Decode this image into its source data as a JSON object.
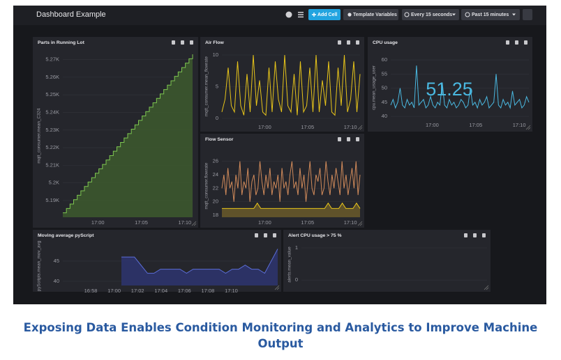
{
  "header": {
    "title": "Dashboard Example",
    "add_cell": "Add Cell",
    "template_variables": "Template Variables",
    "refresh": "Every 15 seconds",
    "range": "Past 15 minutes"
  },
  "cells": [
    {
      "title": "Parts in Running Lot",
      "ylabel": "mqtt_consumer.mean_C324",
      "ylim": [
        5180.5,
        5273
      ],
      "yticks": [
        {
          "value": 5190,
          "label": "5.19K"
        },
        {
          "value": 5200,
          "label": "5.2K"
        },
        {
          "value": 5210,
          "label": "5.21K"
        },
        {
          "value": 5220,
          "label": "5.22K"
        },
        {
          "value": 5230,
          "label": "5.23K"
        },
        {
          "value": 5240,
          "label": "5.24K"
        },
        {
          "value": 5250,
          "label": "5.25K"
        },
        {
          "value": 5260,
          "label": "5.26K"
        },
        {
          "value": 5270,
          "label": "5.27K"
        }
      ],
      "xticks": [
        "17:00",
        "17:05",
        "17:10"
      ],
      "series": [
        {
          "color": "#7ec850",
          "fill": "#3d5a2e",
          "step": true,
          "values": [
            5183,
            5185.5,
            5188,
            5190.5,
            5193,
            5195.5,
            5198,
            5200.5,
            5203,
            5205.5,
            5208,
            5210.5,
            5213,
            5215.5,
            5218,
            5220.5,
            5223,
            5225.5,
            5228,
            5230.5,
            5233,
            5235.5,
            5238,
            5240.5,
            5243,
            5245.5,
            5248,
            5250.5,
            5253,
            5255.5,
            5258,
            5260.5,
            5263,
            5265.5,
            5268,
            5270.5,
            5273
          ]
        }
      ]
    },
    {
      "title": "Air Flow",
      "ylabel": "mqtt_consumer.mean_flowrate",
      "ylim": [
        -0.55,
        10.66
      ],
      "yticks": [
        0,
        5,
        10
      ],
      "xticks": [
        "17:00",
        "17:05",
        "17:10"
      ],
      "series": [
        {
          "color": "#e8c51a",
          "values": [
            1,
            3,
            8,
            2,
            1,
            9,
            2,
            0.5,
            7,
            1,
            10,
            2,
            6,
            1,
            0.5,
            8,
            1,
            9,
            3,
            1,
            10,
            2,
            1,
            7,
            0.5,
            9,
            1,
            2,
            8,
            1,
            10,
            1,
            6,
            2,
            9,
            1,
            0.5,
            8,
            2,
            10,
            1,
            3,
            9,
            1,
            7
          ]
        }
      ]
    },
    {
      "title": "CPU usage",
      "ylabel": "cpu.mean_usage_user",
      "ylim": [
        38.8,
        61.5
      ],
      "yticks": [
        40,
        45,
        50,
        55,
        60
      ],
      "xticks": [
        "17:00",
        "17:05",
        "17:10"
      ],
      "stat": 51.25,
      "series": [
        {
          "color": "#4ab8e0",
          "values": [
            44,
            46,
            43,
            45,
            50,
            44,
            43,
            46,
            44,
            45,
            43,
            58,
            44,
            45,
            46,
            43,
            44,
            47,
            44,
            43,
            45,
            44,
            52,
            44,
            43,
            46,
            44,
            45,
            43,
            44,
            46,
            45,
            43,
            44,
            50,
            44,
            45,
            43,
            46,
            44,
            45,
            47,
            43,
            44,
            45,
            55,
            44,
            43,
            46,
            44,
            45,
            43,
            49,
            44,
            45,
            46,
            43,
            44,
            47,
            45
          ]
        }
      ]
    },
    {
      "title": "Flow Sensor",
      "ylabel": "mqtt_consumer.flowrate",
      "ylim": [
        17.7,
        27
      ],
      "yticks": [
        18,
        20,
        22,
        24,
        26
      ],
      "xticks": [
        "17:00",
        "17:05",
        "17:10"
      ],
      "series": [
        {
          "color": "#d08a5a",
          "values": [
            22,
            24,
            21,
            25,
            22,
            23,
            20,
            24,
            22,
            26,
            21,
            23,
            22,
            25,
            20,
            23,
            24,
            21,
            22,
            26,
            23,
            21,
            24,
            22,
            25,
            21,
            23,
            22,
            24,
            20,
            25,
            22,
            23,
            21,
            24,
            26,
            22,
            23,
            21,
            25,
            22,
            24,
            20,
            23,
            26,
            22,
            21,
            24,
            23,
            25,
            21,
            22,
            26,
            23,
            21,
            24,
            22,
            25,
            23,
            21,
            26,
            22,
            24,
            21,
            23,
            25,
            22,
            26,
            21,
            24
          ]
        },
        {
          "color": "#e8c51a",
          "fill": "#6a5a2a",
          "values": [
            19,
            19,
            19,
            19,
            19,
            19,
            19,
            19,
            19,
            19,
            19.8,
            19,
            19,
            19,
            19,
            19,
            19,
            19,
            19,
            19,
            19,
            19,
            19,
            19,
            19,
            19,
            19,
            19,
            19,
            19,
            19.8,
            19,
            19,
            19,
            19.8,
            19,
            19,
            19,
            19.8,
            19
          ]
        }
      ]
    },
    {
      "title": "Moving average pyScript",
      "ylabel": "pyScripts.mean_mov_avg",
      "ylim": [
        38.97,
        48.6
      ],
      "yticks": [
        40,
        45
      ],
      "xticks": [
        "16:58",
        "17:00",
        "17:02",
        "17:04",
        "17:06",
        "17:08",
        "17:10"
      ],
      "series": [
        {
          "color": "#5b6ed8",
          "fill": "#2e3570",
          "values": [
            null,
            null,
            null,
            null,
            null,
            null,
            null,
            null,
            null,
            46,
            46,
            46,
            44,
            42,
            42,
            43,
            43,
            43,
            43,
            42,
            43,
            43,
            43,
            43,
            43,
            42,
            43,
            43,
            44,
            43,
            43,
            42,
            45,
            48
          ]
        }
      ]
    },
    {
      "title": "Alert CPU usage > 75 %",
      "ylabel": "alerts.mean_value",
      "ylim": [
        -0.17,
        1.13
      ],
      "yticks": [
        0,
        1
      ],
      "xticks": [],
      "series": []
    }
  ],
  "caption": "Exposing Data Enables Condition Monitoring and Analytics to Improve Machine Output"
}
